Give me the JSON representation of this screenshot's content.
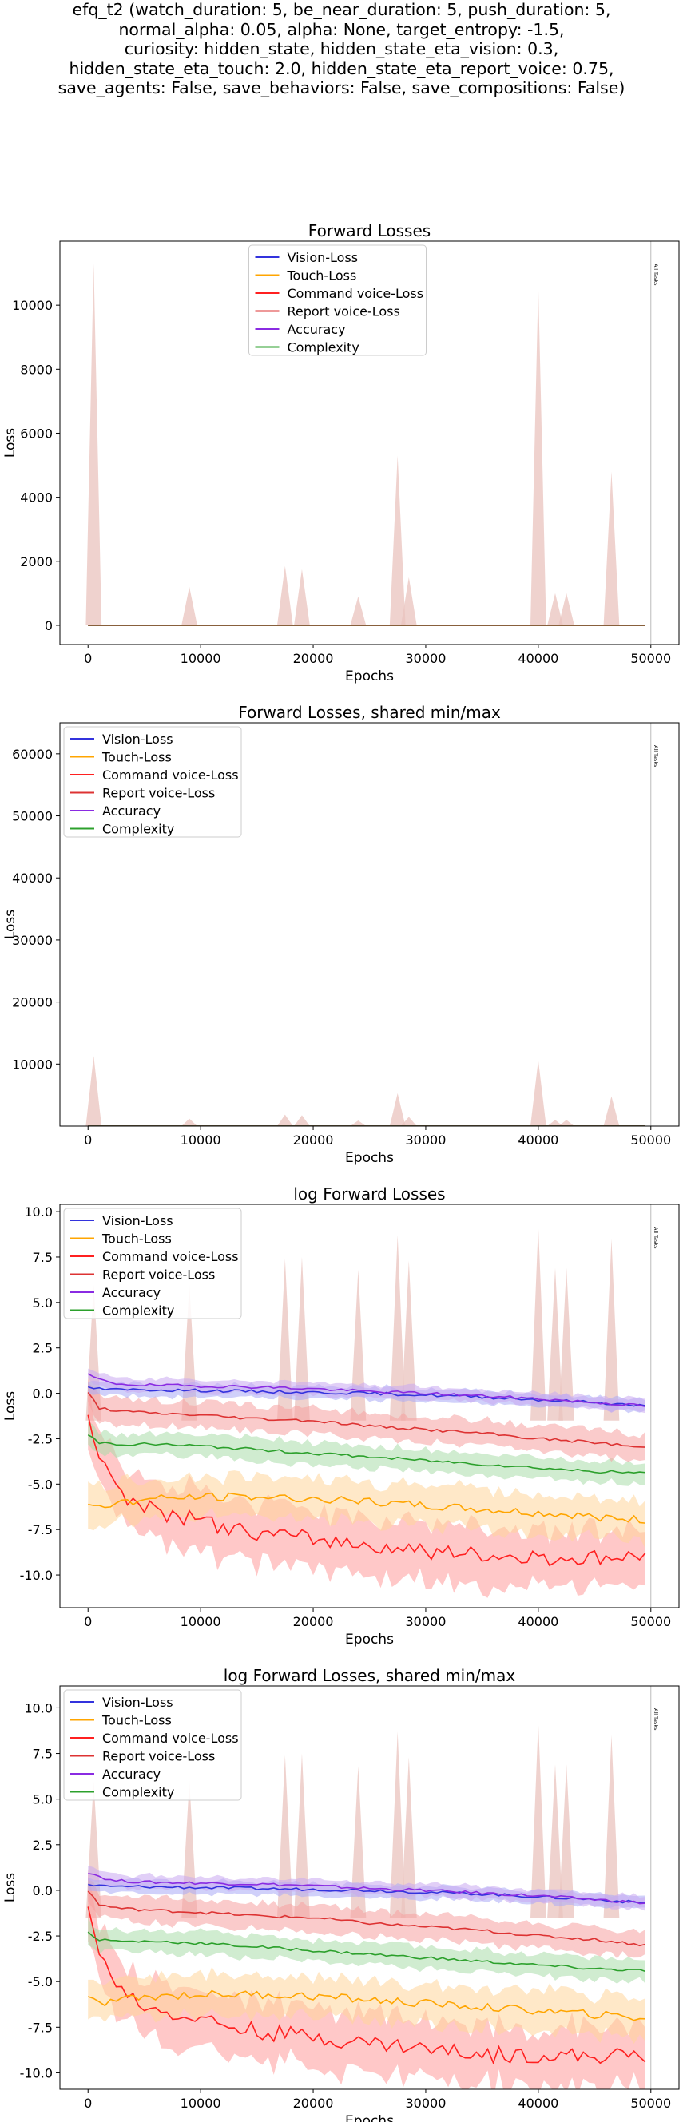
{
  "figure": {
    "suptitle_lines": [
      "efq_t2 (watch_duration: 5, be_near_duration: 5, push_duration: 5,",
      "normal_alpha: 0.05, alpha: None, target_entropy: -1.5,",
      "curiosity: hidden_state, hidden_state_eta_vision: 0.3,",
      "hidden_state_eta_touch: 2.0, hidden_state_eta_report_voice: 0.75,",
      "save_agents: False, save_behaviors: False, save_compositions: False)"
    ]
  },
  "colors": {
    "Vision-Loss": "#3333dd",
    "Touch-Loss": "#ffa500",
    "Command voice-Loss": "#ff2020",
    "Report voice-Loss": "#dd3333",
    "Accuracy": "#8a2be2",
    "Complexity": "#2ca02c",
    "spike_fill": "#e9c3be"
  },
  "chart_data": [
    {
      "type": "line",
      "title": "Forward Losses",
      "xlabel": "Epochs",
      "ylabel": "Loss",
      "xlim": [
        -2500,
        52500
      ],
      "ylim": [
        -600,
        12000
      ],
      "xticks": [
        0,
        10000,
        20000,
        30000,
        40000,
        50000
      ],
      "yticks": [
        0,
        2000,
        4000,
        6000,
        8000,
        10000
      ],
      "legend": [
        "Vision-Loss",
        "Touch-Loss",
        "Command voice-Loss",
        "Report voice-Loss",
        "Accuracy",
        "Complexity"
      ],
      "legend_position": "upper center",
      "vline": {
        "x": 50000,
        "label": "All Tasks"
      },
      "spikes": [
        [
          500,
          11300
        ],
        [
          9000,
          1200
        ],
        [
          17500,
          1850
        ],
        [
          19000,
          1750
        ],
        [
          24000,
          900
        ],
        [
          27500,
          5300
        ],
        [
          28500,
          1500
        ],
        [
          40000,
          10600
        ],
        [
          41500,
          1000
        ],
        [
          42500,
          1000
        ],
        [
          46500,
          4800
        ]
      ],
      "mode": "linear"
    },
    {
      "type": "line",
      "title": "Forward Losses, shared min/max",
      "xlabel": "Epochs",
      "ylabel": "Loss",
      "xlim": [
        -2500,
        52500
      ],
      "ylim": [
        0,
        65000
      ],
      "xticks": [
        0,
        10000,
        20000,
        30000,
        40000,
        50000
      ],
      "yticks": [
        10000,
        20000,
        30000,
        40000,
        50000,
        60000
      ],
      "legend": [
        "Vision-Loss",
        "Touch-Loss",
        "Command voice-Loss",
        "Report voice-Loss",
        "Accuracy",
        "Complexity"
      ],
      "legend_position": "upper left",
      "vline": {
        "x": 50000,
        "label": "All Tasks"
      },
      "spikes": [
        [
          500,
          11300
        ],
        [
          9000,
          1200
        ],
        [
          17500,
          1850
        ],
        [
          19000,
          1750
        ],
        [
          24000,
          900
        ],
        [
          27500,
          5300
        ],
        [
          28500,
          1500
        ],
        [
          40000,
          10600
        ],
        [
          41500,
          1000
        ],
        [
          42500,
          1000
        ],
        [
          46500,
          4800
        ]
      ],
      "mode": "linear"
    },
    {
      "type": "line",
      "title": "log Forward Losses",
      "xlabel": "Epochs",
      "ylabel": "Loss",
      "xlim": [
        -2500,
        52500
      ],
      "ylim": [
        -11.8,
        10.4
      ],
      "xticks": [
        0,
        10000,
        20000,
        30000,
        40000,
        50000
      ],
      "yticks": [
        -10.0,
        -7.5,
        -5.0,
        -2.5,
        0.0,
        2.5,
        5.0,
        7.5,
        10.0
      ],
      "legend": [
        "Vision-Loss",
        "Touch-Loss",
        "Command voice-Loss",
        "Report voice-Loss",
        "Accuracy",
        "Complexity"
      ],
      "legend_position": "upper left",
      "vline": {
        "x": 50000,
        "label": "All Tasks"
      },
      "spikes": [
        [
          500,
          6.0
        ],
        [
          9000,
          6.0
        ],
        [
          17500,
          7.4
        ],
        [
          19000,
          7.5
        ],
        [
          24000,
          6.8
        ],
        [
          27500,
          8.7
        ],
        [
          28500,
          7.3
        ],
        [
          40000,
          9.2
        ],
        [
          41500,
          6.9
        ],
        [
          42500,
          6.9
        ],
        [
          46500,
          8.5
        ]
      ],
      "mode": "log",
      "series": [
        {
          "name": "Accuracy",
          "color": "#8a2be2",
          "x": [
            0,
            2000,
            5000,
            10000,
            15000,
            20000,
            25000,
            30000,
            35000,
            40000,
            45000,
            49500
          ],
          "y": [
            1.0,
            0.55,
            0.45,
            0.4,
            0.35,
            0.25,
            0.1,
            0.0,
            -0.15,
            -0.3,
            -0.5,
            -0.7
          ]
        },
        {
          "name": "Vision-Loss",
          "color": "#3333dd",
          "x": [
            0,
            2000,
            5000,
            10000,
            15000,
            20000,
            25000,
            30000,
            35000,
            40000,
            45000,
            49500
          ],
          "y": [
            0.3,
            0.2,
            0.2,
            0.15,
            0.1,
            0.05,
            0.0,
            -0.1,
            -0.2,
            -0.35,
            -0.5,
            -0.7
          ]
        },
        {
          "name": "Report voice-Loss",
          "color": "#dd3333",
          "x": [
            0,
            1000,
            3000,
            6000,
            10000,
            15000,
            20000,
            25000,
            30000,
            35000,
            40000,
            45000,
            49500
          ],
          "y": [
            0.0,
            -0.8,
            -1.0,
            -1.1,
            -1.2,
            -1.4,
            -1.5,
            -1.8,
            -2.0,
            -2.2,
            -2.5,
            -2.7,
            -3.0
          ]
        },
        {
          "name": "Complexity",
          "color": "#2ca02c",
          "x": [
            0,
            1000,
            3000,
            6000,
            10000,
            15000,
            20000,
            25000,
            30000,
            35000,
            40000,
            45000,
            49500
          ],
          "y": [
            -2.3,
            -2.7,
            -2.8,
            -2.8,
            -2.9,
            -3.1,
            -3.3,
            -3.5,
            -3.7,
            -3.9,
            -4.1,
            -4.3,
            -4.4
          ]
        },
        {
          "name": "Touch-Loss",
          "color": "#ffa500",
          "x": [
            0,
            1000,
            3000,
            6000,
            10000,
            15000,
            20000,
            25000,
            30000,
            35000,
            40000,
            45000,
            49500
          ],
          "y": [
            -6.0,
            -6.2,
            -6.0,
            -5.8,
            -5.7,
            -5.7,
            -5.8,
            -6.0,
            -6.2,
            -6.4,
            -6.6,
            -6.8,
            -7.0
          ]
        },
        {
          "name": "Command voice-Loss",
          "color": "#ff2020",
          "x": [
            0,
            500,
            1500,
            3000,
            5000,
            8000,
            10000,
            13000,
            16000,
            20000,
            24000,
            28000,
            32000,
            36000,
            40000,
            44000,
            49500
          ],
          "y": [
            -1.0,
            -2.5,
            -4.0,
            -5.5,
            -6.3,
            -6.8,
            -7.0,
            -7.5,
            -7.8,
            -8.0,
            -8.3,
            -8.5,
            -8.8,
            -9.0,
            -9.0,
            -9.1,
            -9.0
          ]
        }
      ]
    },
    {
      "type": "line",
      "title": "log Forward Losses, shared min/max",
      "xlabel": "Epochs",
      "ylabel": "Loss",
      "xlim": [
        -2500,
        52500
      ],
      "ylim": [
        -10.9,
        11.2
      ],
      "xticks": [
        0,
        10000,
        20000,
        30000,
        40000,
        50000
      ],
      "yticks": [
        -10.0,
        -7.5,
        -5.0,
        -2.5,
        0.0,
        2.5,
        5.0,
        7.5,
        10.0
      ],
      "legend": [
        "Vision-Loss",
        "Touch-Loss",
        "Command voice-Loss",
        "Report voice-Loss",
        "Accuracy",
        "Complexity"
      ],
      "legend_position": "upper left",
      "vline": {
        "x": 50000,
        "label": "All Tasks"
      },
      "spikes": [
        [
          500,
          6.0
        ],
        [
          9000,
          6.0
        ],
        [
          17500,
          7.4
        ],
        [
          19000,
          7.5
        ],
        [
          24000,
          6.8
        ],
        [
          27500,
          8.7
        ],
        [
          28500,
          7.3
        ],
        [
          40000,
          9.2
        ],
        [
          41500,
          6.9
        ],
        [
          42500,
          6.9
        ],
        [
          46500,
          8.5
        ]
      ],
      "mode": "log",
      "series": [
        {
          "name": "Accuracy",
          "color": "#8a2be2",
          "x": [
            0,
            2000,
            5000,
            10000,
            15000,
            20000,
            25000,
            30000,
            35000,
            40000,
            45000,
            49500
          ],
          "y": [
            1.0,
            0.55,
            0.45,
            0.4,
            0.35,
            0.25,
            0.1,
            0.0,
            -0.15,
            -0.3,
            -0.5,
            -0.7
          ]
        },
        {
          "name": "Vision-Loss",
          "color": "#3333dd",
          "x": [
            0,
            2000,
            5000,
            10000,
            15000,
            20000,
            25000,
            30000,
            35000,
            40000,
            45000,
            49500
          ],
          "y": [
            0.3,
            0.2,
            0.2,
            0.15,
            0.1,
            0.05,
            0.0,
            -0.1,
            -0.2,
            -0.35,
            -0.5,
            -0.7
          ]
        },
        {
          "name": "Report voice-Loss",
          "color": "#dd3333",
          "x": [
            0,
            1000,
            3000,
            6000,
            10000,
            15000,
            20000,
            25000,
            30000,
            35000,
            40000,
            45000,
            49500
          ],
          "y": [
            0.0,
            -0.8,
            -1.0,
            -1.1,
            -1.2,
            -1.4,
            -1.5,
            -1.8,
            -2.0,
            -2.2,
            -2.5,
            -2.7,
            -3.0
          ]
        },
        {
          "name": "Complexity",
          "color": "#2ca02c",
          "x": [
            0,
            1000,
            3000,
            6000,
            10000,
            15000,
            20000,
            25000,
            30000,
            35000,
            40000,
            45000,
            49500
          ],
          "y": [
            -2.3,
            -2.7,
            -2.8,
            -2.8,
            -2.9,
            -3.1,
            -3.3,
            -3.5,
            -3.7,
            -3.9,
            -4.1,
            -4.3,
            -4.4
          ]
        },
        {
          "name": "Touch-Loss",
          "color": "#ffa500",
          "x": [
            0,
            1000,
            3000,
            6000,
            10000,
            15000,
            20000,
            25000,
            30000,
            35000,
            40000,
            45000,
            49500
          ],
          "y": [
            -6.0,
            -6.2,
            -6.0,
            -5.8,
            -5.7,
            -5.7,
            -5.8,
            -6.0,
            -6.2,
            -6.4,
            -6.6,
            -6.8,
            -7.0
          ]
        },
        {
          "name": "Command voice-Loss",
          "color": "#ff2020",
          "x": [
            0,
            500,
            1500,
            3000,
            5000,
            8000,
            10000,
            13000,
            16000,
            20000,
            24000,
            28000,
            32000,
            36000,
            40000,
            44000,
            49500
          ],
          "y": [
            -1.0,
            -2.5,
            -4.0,
            -5.5,
            -6.3,
            -6.8,
            -7.0,
            -7.5,
            -7.8,
            -8.0,
            -8.3,
            -8.5,
            -8.8,
            -9.0,
            -9.0,
            -9.1,
            -9.0
          ]
        }
      ]
    }
  ]
}
